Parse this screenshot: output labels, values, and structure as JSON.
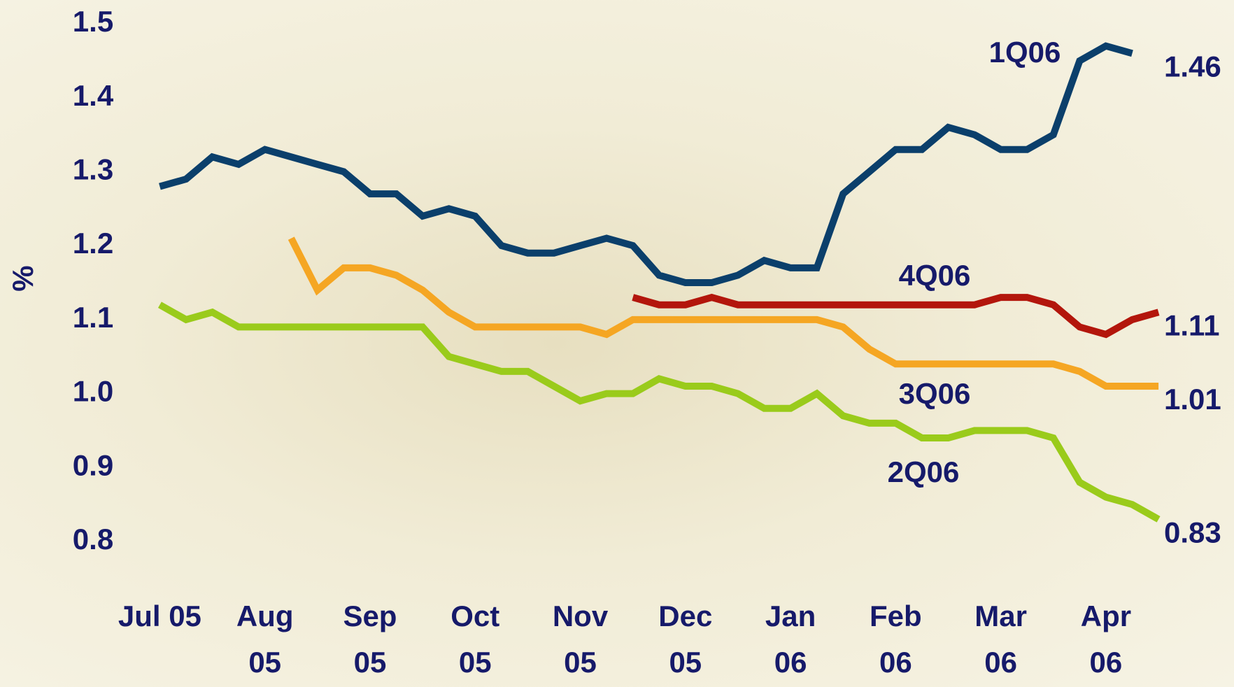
{
  "chart_data": {
    "type": "line",
    "y_label": "%",
    "categories": [
      "Jul 05",
      null,
      null,
      null,
      "Aug 05",
      null,
      null,
      null,
      "Sep 05",
      null,
      null,
      null,
      "Oct 05",
      null,
      null,
      null,
      "Nov 05",
      null,
      null,
      null,
      "Dec 05",
      null,
      null,
      null,
      "Jan 06",
      null,
      null,
      null,
      "Feb 06",
      null,
      null,
      null,
      "Mar 06",
      null,
      null,
      null,
      "Apr 06",
      null,
      null
    ],
    "ylim": [
      0.8,
      1.5
    ],
    "yticks": [
      0.8,
      0.9,
      {
        "value": 1,
        "label": "1.0"
      },
      1.1,
      1.2,
      1.3,
      1.4,
      1.5
    ],
    "series": [
      {
        "name": "1Q06",
        "color": "#0b3f6b",
        "values": [
          1.28,
          1.29,
          1.32,
          1.31,
          1.33,
          1.32,
          1.31,
          1.3,
          1.27,
          1.27,
          1.24,
          1.25,
          1.24,
          1.2,
          1.19,
          1.19,
          1.2,
          1.21,
          1.2,
          1.16,
          1.15,
          1.15,
          1.16,
          1.18,
          1.17,
          1.17,
          1.27,
          1.3,
          1.33,
          1.33,
          1.36,
          1.35,
          1.33,
          1.33,
          1.35,
          1.45,
          1.47,
          1.46,
          null
        ]
      },
      {
        "name": "4Q06",
        "color": "#b3160c",
        "values": [
          null,
          null,
          null,
          null,
          null,
          null,
          null,
          null,
          null,
          null,
          null,
          null,
          null,
          null,
          null,
          null,
          null,
          null,
          1.13,
          1.12,
          1.12,
          1.13,
          1.12,
          1.12,
          1.12,
          1.12,
          1.12,
          1.12,
          1.12,
          1.12,
          1.12,
          1.12,
          1.13,
          1.13,
          1.12,
          1.09,
          1.08,
          1.1,
          1.11
        ]
      },
      {
        "name": "3Q06",
        "color": "#f5a623",
        "values": [
          null,
          null,
          null,
          null,
          null,
          1.21,
          1.14,
          1.17,
          1.17,
          1.16,
          1.14,
          1.11,
          1.09,
          1.09,
          1.09,
          1.09,
          1.09,
          1.08,
          1.1,
          1.1,
          1.1,
          1.1,
          1.1,
          1.1,
          1.1,
          1.1,
          1.09,
          1.06,
          1.04,
          1.04,
          1.04,
          1.04,
          1.04,
          1.04,
          1.04,
          1.03,
          1.01,
          1.01,
          1.01
        ]
      },
      {
        "name": "2Q06",
        "color": "#9acb1b",
        "values": [
          1.12,
          1.1,
          1.11,
          1.09,
          1.09,
          1.09,
          1.09,
          1.09,
          1.09,
          1.09,
          1.09,
          1.05,
          1.04,
          1.03,
          1.03,
          1.01,
          0.99,
          1.0,
          1.0,
          1.02,
          1.01,
          1.01,
          1.0,
          0.98,
          0.98,
          1.0,
          0.97,
          0.96,
          0.96,
          0.94,
          0.94,
          0.95,
          0.95,
          0.95,
          0.94,
          0.88,
          0.86,
          0.85,
          0.83
        ]
      }
    ]
  }
}
